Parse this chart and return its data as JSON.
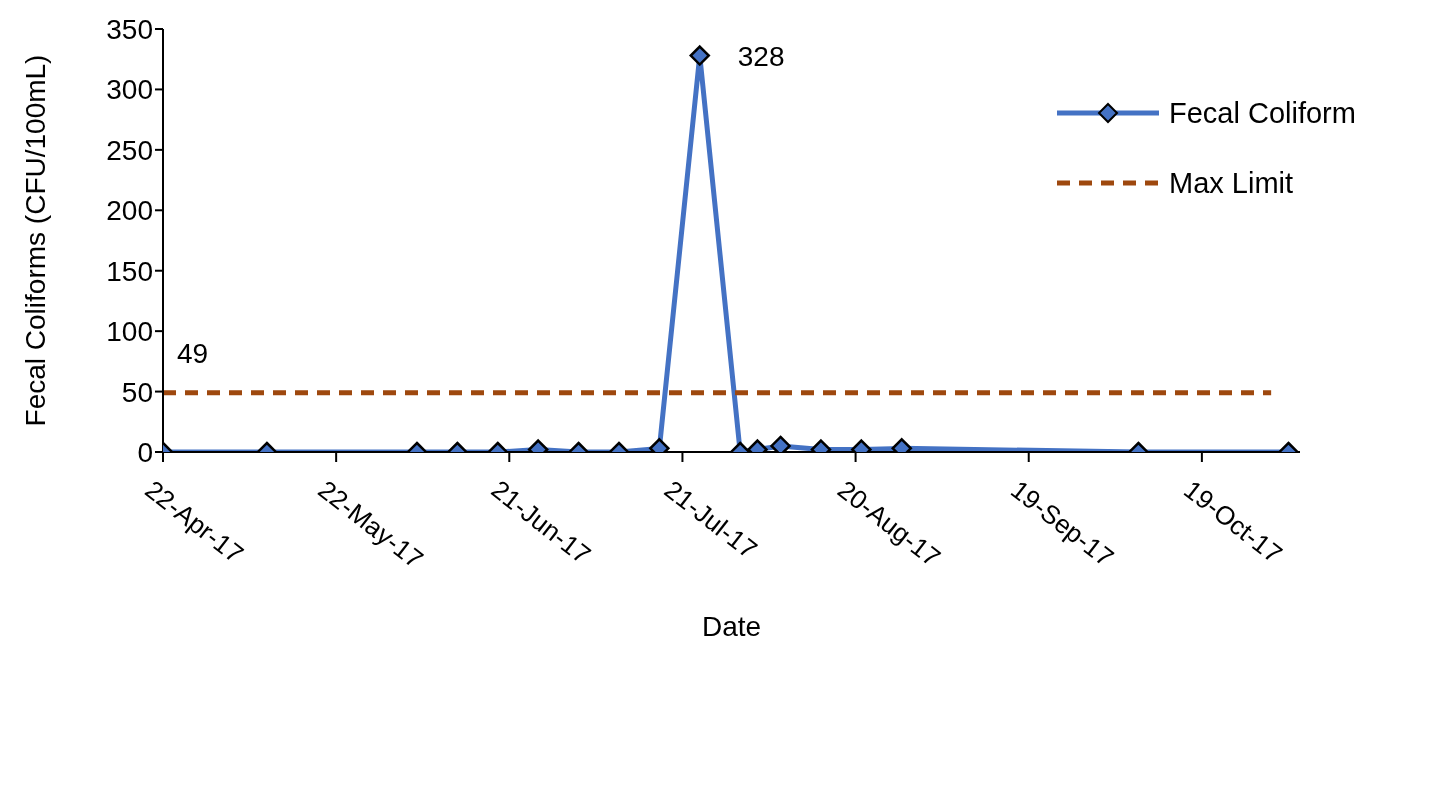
{
  "chart_data": {
    "type": "line",
    "xlabel": "Date",
    "ylabel": "Fecal Coliforms (CFU/100mL)",
    "xlim": [
      "2017-04-22",
      "2017-11-05"
    ],
    "xticks": [
      {
        "value": "2017-04-22",
        "label": "22-Apr-17"
      },
      {
        "value": "2017-05-22",
        "label": "22-May-17"
      },
      {
        "value": "2017-06-21",
        "label": "21-Jun-17"
      },
      {
        "value": "2017-07-21",
        "label": "21-Jul-17"
      },
      {
        "value": "2017-08-20",
        "label": "20-Aug-17"
      },
      {
        "value": "2017-09-19",
        "label": "19-Sep-17"
      },
      {
        "value": "2017-10-19",
        "label": "19-Oct-17"
      }
    ],
    "ylim": [
      0,
      350
    ],
    "yticks": [
      0,
      50,
      100,
      150,
      200,
      250,
      300,
      350
    ],
    "series": [
      {
        "name": "Fecal Coliform",
        "color": "#4472c4",
        "marker": "diamond",
        "line_style": "solid",
        "x": [
          "2017-04-22",
          "2017-05-10",
          "2017-06-05",
          "2017-06-12",
          "2017-06-19",
          "2017-06-26",
          "2017-07-03",
          "2017-07-10",
          "2017-07-17",
          "2017-07-24",
          "2017-07-31",
          "2017-08-03",
          "2017-08-07",
          "2017-08-14",
          "2017-08-21",
          "2017-08-28",
          "2017-10-08",
          "2017-11-03"
        ],
        "values": [
          0,
          0,
          0,
          0,
          0,
          2,
          0,
          0,
          3,
          328,
          0,
          2,
          5,
          2,
          2,
          3,
          0,
          0
        ]
      },
      {
        "name": "Max Limit",
        "color": "#9e480e",
        "marker": "none",
        "line_style": "dashed",
        "x": [
          "2017-04-22",
          "2017-10-31"
        ],
        "values": [
          49,
          49
        ]
      }
    ],
    "annotations": [
      {
        "text": "328",
        "x": "2017-07-24",
        "y": 328
      },
      {
        "text": "49",
        "x": "2017-04-22",
        "y": 49
      }
    ],
    "legend": "top right"
  }
}
